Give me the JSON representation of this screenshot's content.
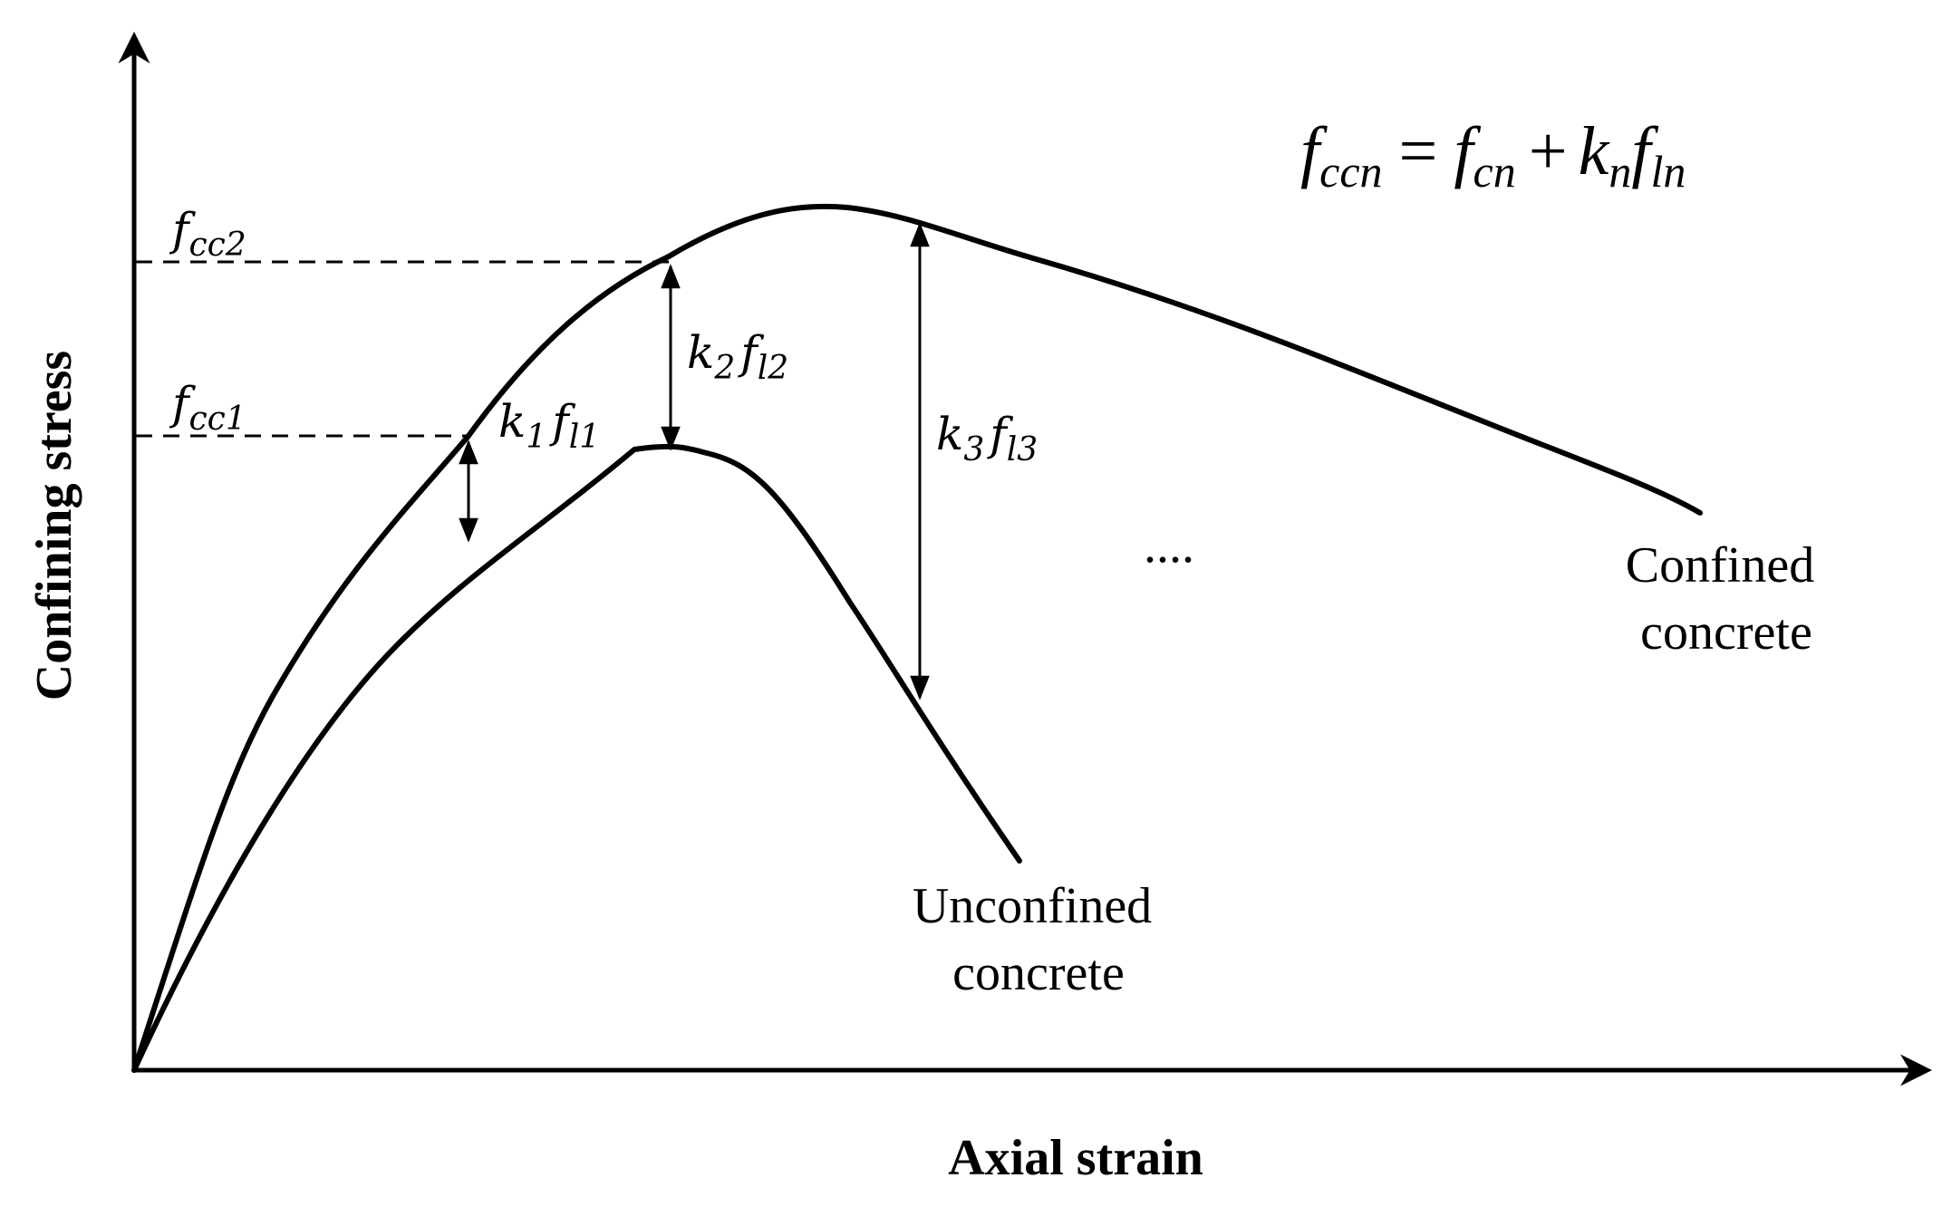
{
  "axes": {
    "y_title": "Confining stress",
    "x_title": "Axial strain"
  },
  "formula": {
    "lhs_base": "f",
    "lhs_sub": "ccn",
    "equals": "=",
    "t1_base": "f",
    "t1_sub": "cn",
    "plus": "+",
    "t2_base": "k",
    "t2_sub": "n",
    "t3_base": "f",
    "t3_sub": "ln"
  },
  "levels": {
    "fcc2": {
      "base": "f",
      "sub": "cc2"
    },
    "fcc1": {
      "base": "f",
      "sub": "cc1"
    }
  },
  "increments": {
    "k1fl1": {
      "k": "k",
      "k_sub": "1",
      "f": "f",
      "f_sub": "l1"
    },
    "k2fl2": {
      "k": "k",
      "k_sub": "2",
      "f": "f",
      "f_sub": "l2"
    },
    "k3fl3": {
      "k": "k",
      "k_sub": "3",
      "f": "f",
      "f_sub": "l3"
    }
  },
  "ellipsis": "....",
  "curves": {
    "confined": {
      "line1": "Confined",
      "line2": "concrete"
    },
    "unconfined": {
      "line1": "Unconfined",
      "line2": "concrete"
    }
  }
}
